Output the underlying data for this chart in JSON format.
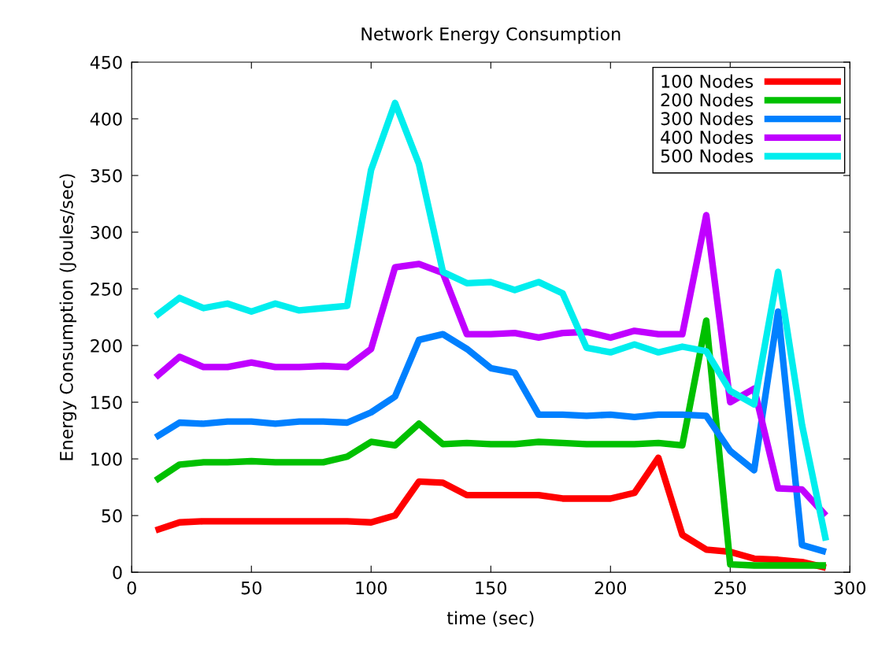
{
  "chart_data": {
    "type": "line",
    "title": "Network Energy Consumption",
    "xlabel": "time (sec)",
    "ylabel": "Energy Consumption (Joules/sec)",
    "x": [
      10,
      20,
      30,
      40,
      50,
      60,
      70,
      80,
      90,
      100,
      110,
      120,
      130,
      140,
      150,
      160,
      170,
      180,
      190,
      200,
      210,
      220,
      230,
      240,
      250,
      260,
      270,
      280,
      290
    ],
    "series": [
      {
        "name": "100 Nodes",
        "color": "#ff0000",
        "values": [
          37,
          44,
          45,
          45,
          45,
          45,
          45,
          45,
          45,
          44,
          50,
          80,
          79,
          68,
          68,
          68,
          68,
          65,
          65,
          65,
          70,
          101,
          33,
          20,
          18,
          12,
          11,
          9,
          4
        ]
      },
      {
        "name": "200 Nodes",
        "color": "#00c000",
        "values": [
          81,
          95,
          97,
          97,
          98,
          97,
          97,
          97,
          102,
          115,
          112,
          131,
          113,
          114,
          113,
          113,
          115,
          114,
          113,
          113,
          113,
          114,
          112,
          222,
          7,
          6,
          6,
          6,
          6
        ]
      },
      {
        "name": "300 Nodes",
        "color": "#0080ff",
        "values": [
          119,
          132,
          131,
          133,
          133,
          131,
          133,
          133,
          132,
          141,
          155,
          205,
          210,
          197,
          180,
          176,
          139,
          139,
          138,
          139,
          137,
          139,
          139,
          138,
          107,
          90,
          230,
          24,
          18
        ]
      },
      {
        "name": "400 Nodes",
        "color": "#c000ff",
        "values": [
          172,
          190,
          181,
          181,
          185,
          181,
          181,
          182,
          181,
          197,
          269,
          272,
          264,
          210,
          210,
          211,
          207,
          211,
          212,
          207,
          213,
          210,
          210,
          315,
          150,
          162,
          74,
          73,
          50
        ]
      },
      {
        "name": "500 Nodes",
        "color": "#00eeee",
        "values": [
          226,
          242,
          233,
          237,
          230,
          237,
          231,
          233,
          235,
          355,
          414,
          360,
          265,
          255,
          256,
          249,
          256,
          246,
          198,
          194,
          201,
          194,
          199,
          195,
          160,
          148,
          265,
          130,
          28
        ]
      }
    ],
    "xlim": [
      0,
      300
    ],
    "xticks": [
      0,
      50,
      100,
      150,
      200,
      250,
      300
    ],
    "ylim": [
      0,
      450
    ],
    "yticks": [
      0,
      50,
      100,
      150,
      200,
      250,
      300,
      350,
      400,
      450
    ],
    "legend": "top right",
    "grid": false,
    "marker": "none",
    "line_style": "solid"
  }
}
